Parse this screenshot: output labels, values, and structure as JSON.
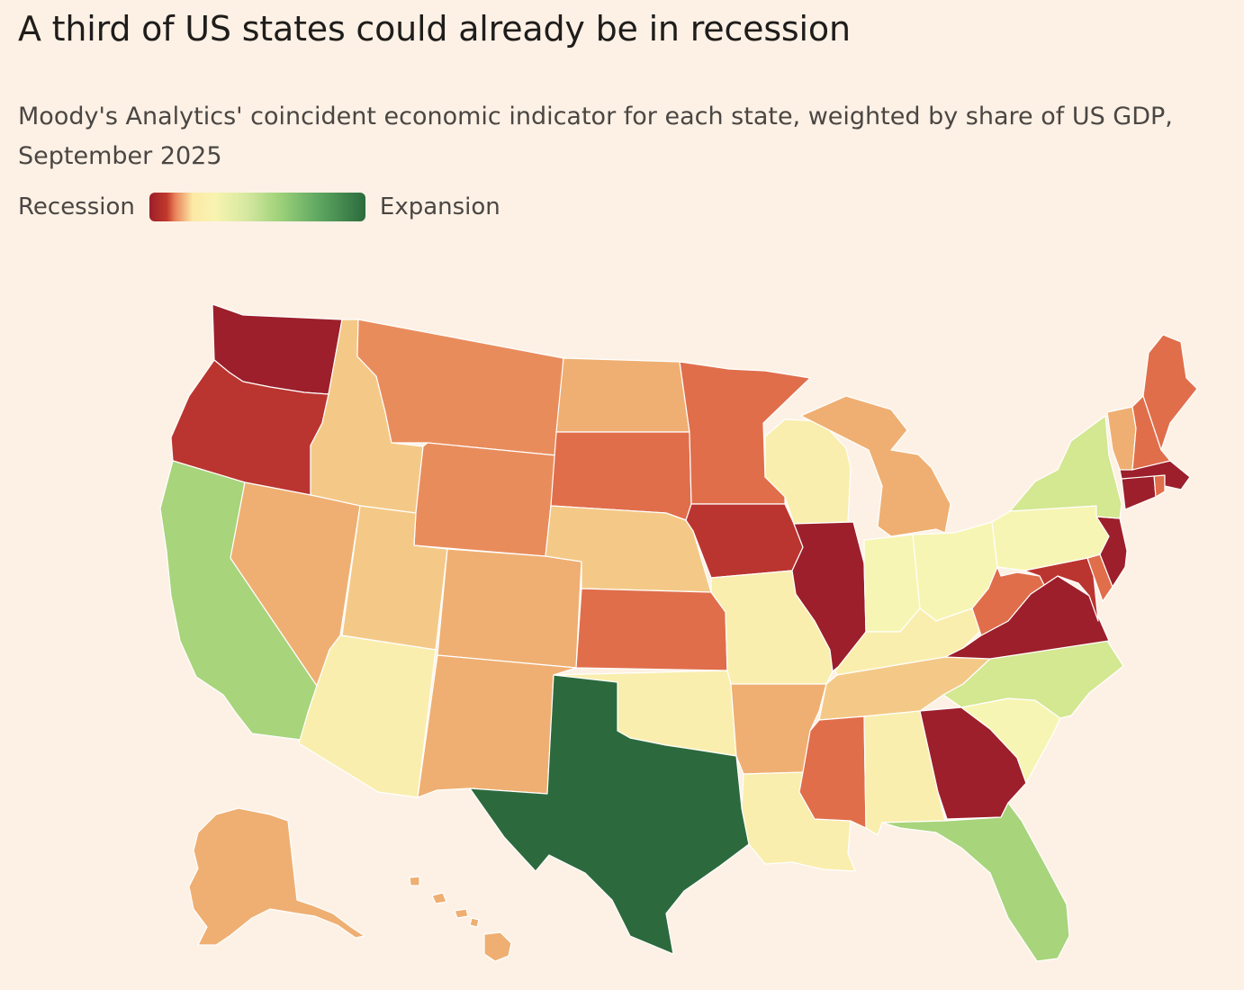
{
  "title": "A third of US states could already be in recession",
  "subtitle": "Moody's Analytics' coincident economic indicator for each state, weighted by share of US GDP, September 2025",
  "legend": {
    "low_label": "Recession",
    "high_label": "Expansion"
  },
  "colors": {
    "background": "#fdf1e5",
    "deep_red": "#9c1f2b",
    "red": "#bb3530",
    "orange_red": "#e06e4b",
    "orange": "#e98c5c",
    "light_orange": "#efaf72",
    "tan": "#f4c987",
    "pale_yellow": "#faeeae",
    "light_yellow": "#f7f5b3",
    "light_green": "#d4e791",
    "green": "#a8d47b",
    "dark_green": "#2c6a3e"
  },
  "state_categories": {
    "WA": "deep_red",
    "OR": "red",
    "CA": "green",
    "NV": "light_orange",
    "ID": "tan",
    "MT": "orange",
    "WY": "orange",
    "UT": "tan",
    "AZ": "pale_yellow",
    "CO": "light_orange",
    "NM": "light_orange",
    "ND": "light_orange",
    "SD": "orange_red",
    "NE": "tan",
    "KS": "orange_red",
    "OK": "pale_yellow",
    "TX": "dark_green",
    "MN": "orange_red",
    "IA": "red",
    "MO": "pale_yellow",
    "AR": "light_orange",
    "LA": "pale_yellow",
    "WI": "pale_yellow",
    "IL": "deep_red",
    "MI": "light_orange",
    "IN": "light_yellow",
    "OH": "light_yellow",
    "KY": "pale_yellow",
    "TN": "tan",
    "MS": "orange_red",
    "AL": "pale_yellow",
    "GA": "deep_red",
    "FL": "green",
    "SC": "light_yellow",
    "NC": "light_green",
    "VA": "deep_red",
    "WV": "orange_red",
    "MD": "red",
    "DE": "orange_red",
    "NJ": "deep_red",
    "PA": "light_yellow",
    "NY": "light_green",
    "CT": "deep_red",
    "RI": "orange_red",
    "MA": "deep_red",
    "VT": "light_orange",
    "NH": "orange_red",
    "ME": "orange_red",
    "AK": "light_orange",
    "HI": "light_orange"
  }
}
